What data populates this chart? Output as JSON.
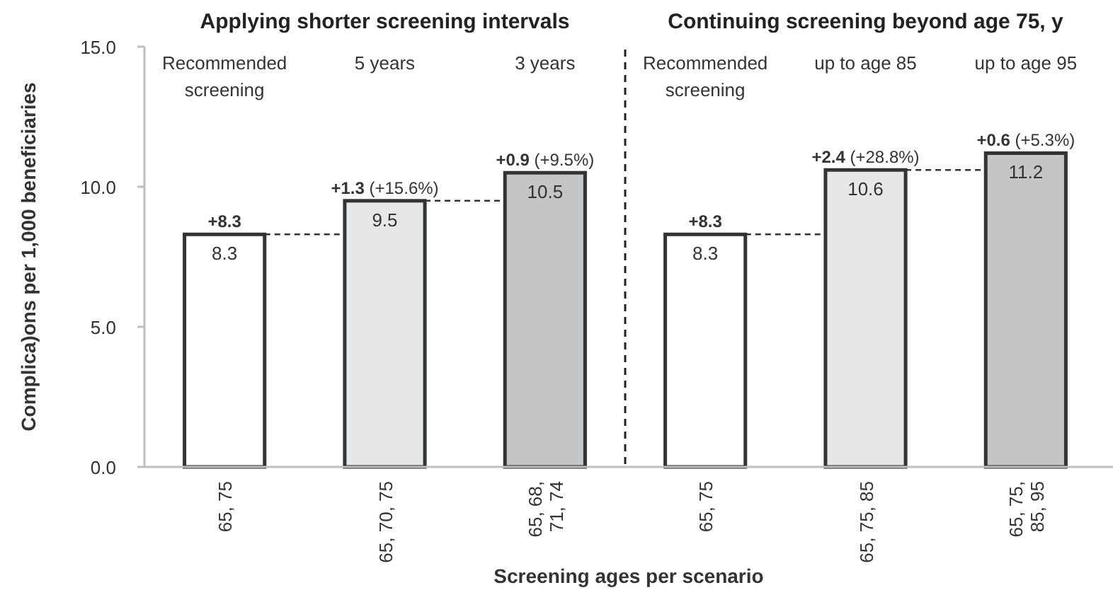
{
  "chart_data": {
    "type": "bar",
    "xlabel": "Screening ages per scenario",
    "ylabel": "Complica)ons per 1,000 beneficiaries",
    "categories": [
      "65, 75",
      "65, 70, 75",
      "65, 68, 71, 74",
      "65, 75",
      "65, 75, 85",
      "65, 75, 85, 95"
    ],
    "values": [
      8.3,
      9.5,
      10.5,
      8.3,
      10.6,
      11.2
    ],
    "colors": [
      "#ffffff",
      "#e6e7e8",
      "#c4c5c7",
      "#ffffff",
      "#e6e7e8",
      "#c4c5c7"
    ],
    "data_labels": true,
    "ylim": [
      0,
      15
    ],
    "yticks": [
      {
        "value": 0,
        "label": "0.0"
      },
      {
        "value": 5,
        "label": "5.0"
      },
      {
        "value": 10,
        "label": "10.0"
      },
      {
        "value": 15,
        "label": "15.0"
      }
    ],
    "grid": false,
    "annotations": [
      "Applying shorter screening intervals",
      "Continuing screening beyond age 75, y",
      "Recommended screening",
      "5 years",
      "3 years",
      "Recommended screening",
      "up to age 85",
      "up to age 95",
      {
        "text": "+8.3",
        "y": 8.3
      },
      {
        "text": "+1.3 (+15.6%)",
        "y": 9.5
      },
      {
        "text": "+0.9 (+9.5%)",
        "y": 10.5
      },
      {
        "text": "+8.3",
        "y": 8.3
      },
      {
        "text": "+2.4 (+28.8%)",
        "y": 10.6
      },
      {
        "text": "+0.6 (+5.3%)",
        "y": 11.2
      }
    ]
  }
}
